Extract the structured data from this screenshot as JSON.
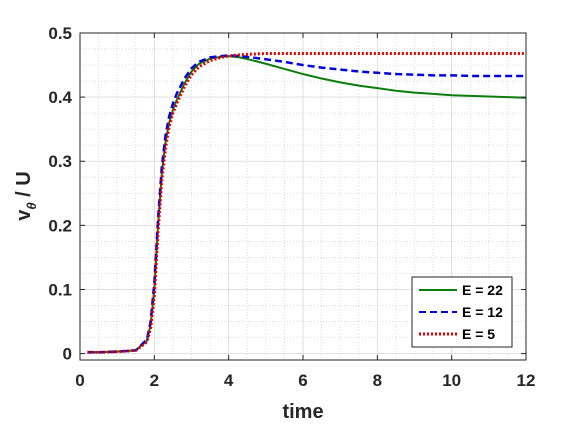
{
  "chart_data": {
    "type": "line",
    "xlabel": "time",
    "ylabel_main": "v",
    "ylabel_sub": "θ",
    "ylabel_tail": " / U",
    "xlim": [
      0,
      12
    ],
    "ylim": [
      -0.01,
      0.5
    ],
    "xticks": [
      0,
      2,
      4,
      6,
      8,
      10,
      12
    ],
    "yticks": [
      0,
      0.1,
      0.2,
      0.3,
      0.4,
      0.5
    ],
    "xtick_labels": [
      "0",
      "2",
      "4",
      "6",
      "8",
      "10",
      "12"
    ],
    "ytick_labels": [
      "0",
      "0.1",
      "0.2",
      "0.3",
      "0.4",
      "0.5"
    ],
    "grid": true,
    "minor_grid": true,
    "legend_position": "bottom-right",
    "series": [
      {
        "name": "E = 22",
        "color": "#0a7d0a",
        "style": "solid",
        "x": [
          0.2,
          0.5,
          1.0,
          1.5,
          1.8,
          1.9,
          2.0,
          2.1,
          2.2,
          2.3,
          2.4,
          2.5,
          2.6,
          2.8,
          3.0,
          3.2,
          3.5,
          3.8,
          4.0,
          4.3,
          4.6,
          5.0,
          5.5,
          6.0,
          6.5,
          7.0,
          7.5,
          8.0,
          8.5,
          9.0,
          9.5,
          10.0,
          10.5,
          11.0,
          11.5,
          12.0
        ],
        "y": [
          0.002,
          0.002,
          0.003,
          0.005,
          0.02,
          0.045,
          0.1,
          0.2,
          0.28,
          0.33,
          0.36,
          0.38,
          0.395,
          0.42,
          0.44,
          0.452,
          0.46,
          0.463,
          0.464,
          0.462,
          0.458,
          0.452,
          0.444,
          0.436,
          0.429,
          0.423,
          0.418,
          0.414,
          0.41,
          0.407,
          0.405,
          0.403,
          0.402,
          0.401,
          0.4,
          0.399
        ]
      },
      {
        "name": "E = 12",
        "color": "#0000e0",
        "style": "dashed",
        "x": [
          0.2,
          0.5,
          1.0,
          1.5,
          1.8,
          1.9,
          2.0,
          2.1,
          2.2,
          2.3,
          2.4,
          2.5,
          2.6,
          2.8,
          3.0,
          3.2,
          3.5,
          3.8,
          4.0,
          4.3,
          4.6,
          5.0,
          5.5,
          6.0,
          6.5,
          7.0,
          7.5,
          8.0,
          8.5,
          9.0,
          9.5,
          10.0,
          10.5,
          11.0,
          11.5,
          12.0
        ],
        "y": [
          0.002,
          0.002,
          0.003,
          0.005,
          0.022,
          0.05,
          0.11,
          0.21,
          0.29,
          0.34,
          0.37,
          0.39,
          0.405,
          0.428,
          0.445,
          0.455,
          0.462,
          0.464,
          0.465,
          0.464,
          0.462,
          0.459,
          0.455,
          0.45,
          0.446,
          0.443,
          0.44,
          0.438,
          0.436,
          0.435,
          0.434,
          0.434,
          0.433,
          0.433,
          0.433,
          0.433
        ]
      },
      {
        "name": "E = 5",
        "color": "#e00000",
        "style": "dotted",
        "x": [
          0.2,
          0.5,
          1.0,
          1.5,
          1.8,
          1.9,
          2.0,
          2.1,
          2.2,
          2.3,
          2.4,
          2.5,
          2.6,
          2.8,
          3.0,
          3.2,
          3.5,
          3.8,
          4.0,
          4.3,
          4.6,
          5.0,
          5.5,
          6.0,
          7.0,
          8.0,
          9.0,
          10.0,
          11.0,
          12.0
        ],
        "y": [
          0.002,
          0.002,
          0.003,
          0.005,
          0.018,
          0.04,
          0.09,
          0.19,
          0.27,
          0.32,
          0.355,
          0.375,
          0.39,
          0.415,
          0.435,
          0.447,
          0.457,
          0.462,
          0.464,
          0.466,
          0.467,
          0.468,
          0.468,
          0.468,
          0.468,
          0.468,
          0.468,
          0.468,
          0.468,
          0.468
        ]
      }
    ]
  }
}
